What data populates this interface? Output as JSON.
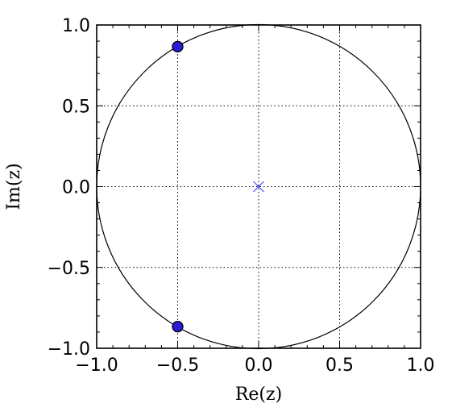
{
  "chart_data": {
    "type": "scatter",
    "title": "",
    "xlabel": "Re(z)",
    "ylabel": "Im(z)",
    "xlim": [
      -1.0,
      1.0
    ],
    "ylim": [
      -1.0,
      1.0
    ],
    "x_ticks": [
      -1.0,
      -0.5,
      0.0,
      0.5,
      1.0
    ],
    "y_ticks": [
      -1.0,
      -0.5,
      0.0,
      0.5,
      1.0
    ],
    "x_tick_labels": [
      "−1.0",
      "−0.5",
      "0.0",
      "0.5",
      "1.0"
    ],
    "y_tick_labels": [
      "−1.0",
      "−0.5",
      "0.0",
      "0.5",
      "1.0"
    ],
    "grid": true,
    "grid_style": "dotted",
    "unit_circle": {
      "center": [
        0,
        0
      ],
      "radius": 1.0,
      "color": "#000000"
    },
    "series": [
      {
        "marker": "circle",
        "color": "#2a1bd6",
        "edge_color": "#000000",
        "points": [
          [
            -0.5,
            0.866
          ],
          [
            -0.5,
            -0.866
          ]
        ]
      },
      {
        "marker": "x",
        "color": "#4b4bff",
        "points": [
          [
            0.0,
            0.0
          ]
        ]
      }
    ]
  }
}
